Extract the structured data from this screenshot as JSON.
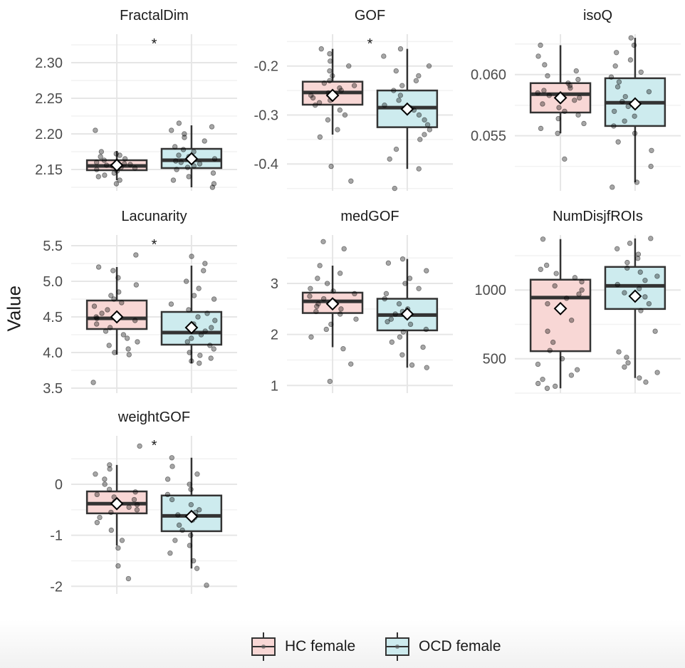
{
  "chart_data": [
    {
      "type": "box",
      "title": "FractalDim",
      "ylim": [
        2.12,
        2.34
      ],
      "yticks": [
        2.15,
        2.2,
        2.25,
        2.3
      ],
      "ytick_labels": [
        "2.15",
        "2.20",
        "2.25",
        "2.30"
      ],
      "significance": "*",
      "groups": [
        {
          "name": "HC female",
          "q1": 2.149,
          "median": 2.155,
          "q3": 2.163,
          "whisker_low": 2.135,
          "whisker_high": 2.176,
          "mean": 2.156,
          "points": [
            2.13,
            2.135,
            2.14,
            2.142,
            2.145,
            2.148,
            2.15,
            2.152,
            2.153,
            2.155,
            2.156,
            2.157,
            2.158,
            2.16,
            2.161,
            2.163,
            2.165,
            2.168,
            2.17,
            2.172,
            2.175,
            2.205
          ]
        },
        {
          "name": "OCD female",
          "q1": 2.152,
          "median": 2.163,
          "q3": 2.179,
          "whisker_low": 2.125,
          "whisker_high": 2.212,
          "mean": 2.165,
          "points": [
            2.125,
            2.13,
            2.135,
            2.14,
            2.145,
            2.15,
            2.153,
            2.155,
            2.158,
            2.16,
            2.162,
            2.165,
            2.168,
            2.17,
            2.175,
            2.178,
            2.182,
            2.19,
            2.195,
            2.2,
            2.205,
            2.21,
            2.215
          ]
        }
      ]
    },
    {
      "type": "box",
      "title": "GOF",
      "ylim": [
        -0.455,
        -0.135
      ],
      "yticks": [
        -0.4,
        -0.3,
        -0.2
      ],
      "ytick_labels": [
        "-0.4",
        "-0.3",
        "-0.2"
      ],
      "significance": "*",
      "groups": [
        {
          "name": "HC female",
          "q1": -0.279,
          "median": -0.254,
          "q3": -0.232,
          "whisker_low": -0.34,
          "whisker_high": -0.165,
          "mean": -0.26,
          "points": [
            -0.435,
            -0.405,
            -0.345,
            -0.33,
            -0.31,
            -0.3,
            -0.29,
            -0.28,
            -0.275,
            -0.27,
            -0.265,
            -0.26,
            -0.255,
            -0.25,
            -0.245,
            -0.24,
            -0.235,
            -0.23,
            -0.22,
            -0.21,
            -0.2,
            -0.19,
            -0.175,
            -0.165
          ]
        },
        {
          "name": "OCD female",
          "q1": -0.325,
          "median": -0.285,
          "q3": -0.25,
          "whisker_low": -0.41,
          "whisker_high": -0.165,
          "mean": -0.288,
          "points": [
            -0.45,
            -0.41,
            -0.39,
            -0.37,
            -0.35,
            -0.34,
            -0.33,
            -0.32,
            -0.31,
            -0.3,
            -0.29,
            -0.285,
            -0.28,
            -0.27,
            -0.26,
            -0.25,
            -0.24,
            -0.23,
            -0.22,
            -0.21,
            -0.2,
            -0.18,
            -0.165
          ]
        }
      ]
    },
    {
      "type": "box",
      "title": "isoQ",
      "ylim": [
        0.0505,
        0.0633
      ],
      "yticks": [
        0.055,
        0.06
      ],
      "ytick_labels": [
        "0.055",
        "0.060"
      ],
      "significance": "",
      "groups": [
        {
          "name": "HC female",
          "q1": 0.0569,
          "median": 0.0584,
          "q3": 0.0593,
          "whisker_low": 0.0552,
          "whisker_high": 0.0624,
          "mean": 0.0581,
          "points": [
            0.0531,
            0.0552,
            0.0556,
            0.056,
            0.0564,
            0.0567,
            0.057,
            0.0573,
            0.0576,
            0.0579,
            0.0581,
            0.0583,
            0.0585,
            0.0587,
            0.0589,
            0.0591,
            0.0593,
            0.0596,
            0.0599,
            0.0603,
            0.0608,
            0.0615,
            0.0624
          ]
        },
        {
          "name": "OCD female",
          "q1": 0.0558,
          "median": 0.0577,
          "q3": 0.0597,
          "whisker_low": 0.0512,
          "whisker_high": 0.063,
          "mean": 0.0576,
          "points": [
            0.0508,
            0.0512,
            0.0525,
            0.0538,
            0.0545,
            0.0552,
            0.0558,
            0.0562,
            0.0566,
            0.057,
            0.0574,
            0.0578,
            0.0582,
            0.0586,
            0.059,
            0.0594,
            0.0598,
            0.0602,
            0.0607,
            0.0612,
            0.0618,
            0.0624,
            0.063
          ]
        }
      ]
    },
    {
      "type": "box",
      "title": "Lacunarity",
      "ylim": [
        3.43,
        5.65
      ],
      "yticks": [
        3.5,
        4.0,
        4.5,
        5.0,
        5.5
      ],
      "ytick_labels": [
        "3.5",
        "4.0",
        "4.5",
        "5.0",
        "5.5"
      ],
      "significance": "*",
      "groups": [
        {
          "name": "HC female",
          "q1": 4.33,
          "median": 4.48,
          "q3": 4.73,
          "whisker_low": 3.97,
          "whisker_high": 5.2,
          "mean": 4.5,
          "points": [
            3.58,
            3.97,
            4.0,
            4.05,
            4.1,
            4.15,
            4.2,
            4.25,
            4.3,
            4.35,
            4.4,
            4.45,
            4.48,
            4.5,
            4.55,
            4.6,
            4.65,
            4.7,
            4.75,
            4.8,
            4.85,
            4.95,
            5.05,
            5.15,
            5.2,
            5.37
          ]
        },
        {
          "name": "OCD female",
          "q1": 4.11,
          "median": 4.28,
          "q3": 4.57,
          "whisker_low": 3.85,
          "whisker_high": 5.22,
          "mean": 4.35,
          "points": [
            3.85,
            3.88,
            3.92,
            3.96,
            4.0,
            4.05,
            4.1,
            4.15,
            4.2,
            4.25,
            4.3,
            4.35,
            4.4,
            4.45,
            4.5,
            4.55,
            4.6,
            4.68,
            4.75,
            4.8,
            4.9,
            5.0,
            5.15,
            5.25,
            5.35
          ]
        }
      ]
    },
    {
      "type": "box",
      "title": "medGOF",
      "ylim": [
        0.85,
        3.95
      ],
      "yticks": [
        1,
        2,
        3
      ],
      "ytick_labels": [
        "1",
        "2",
        "3"
      ],
      "significance": "",
      "groups": [
        {
          "name": "HC female",
          "q1": 2.42,
          "median": 2.65,
          "q3": 2.82,
          "whisker_low": 1.75,
          "whisker_high": 3.35,
          "mean": 2.6,
          "points": [
            1.08,
            1.42,
            1.72,
            1.95,
            2.1,
            2.2,
            2.3,
            2.4,
            2.45,
            2.5,
            2.55,
            2.6,
            2.65,
            2.7,
            2.75,
            2.8,
            2.85,
            2.9,
            3.0,
            3.1,
            3.2,
            3.35,
            3.68,
            3.82
          ]
        },
        {
          "name": "OCD female",
          "q1": 2.08,
          "median": 2.38,
          "q3": 2.7,
          "whisker_low": 1.35,
          "whisker_high": 3.48,
          "mean": 2.4,
          "points": [
            1.35,
            1.4,
            1.6,
            1.75,
            1.85,
            1.95,
            2.05,
            2.1,
            2.2,
            2.25,
            2.3,
            2.35,
            2.4,
            2.45,
            2.5,
            2.6,
            2.7,
            2.8,
            2.9,
            3.0,
            3.1,
            3.25,
            3.4,
            3.48
          ]
        }
      ]
    },
    {
      "type": "box",
      "title": "NumDisjfROIs",
      "ylim": [
        250,
        1400
      ],
      "yticks": [
        500,
        1000
      ],
      "ytick_labels": [
        "500",
        "1000"
      ],
      "significance": "",
      "groups": [
        {
          "name": "HC female",
          "q1": 555,
          "median": 945,
          "q3": 1075,
          "whisker_low": 285,
          "whisker_high": 1370,
          "mean": 865,
          "points": [
            285,
            300,
            320,
            350,
            380,
            420,
            460,
            500,
            560,
            620,
            700,
            780,
            850,
            900,
            940,
            970,
            1000,
            1030,
            1060,
            1090,
            1120,
            1150,
            1180,
            1370
          ]
        },
        {
          "name": "OCD female",
          "q1": 862,
          "median": 1030,
          "q3": 1168,
          "whisker_low": 360,
          "whisker_high": 1375,
          "mean": 955,
          "points": [
            330,
            360,
            400,
            440,
            470,
            510,
            550,
            700,
            850,
            900,
            950,
            980,
            1010,
            1040,
            1070,
            1100,
            1130,
            1160,
            1200,
            1230,
            1260,
            1300,
            1340,
            1375
          ]
        }
      ]
    },
    {
      "type": "box",
      "title": "weightGOF",
      "ylim": [
        -2.15,
        0.95
      ],
      "yticks": [
        -2,
        -1,
        0
      ],
      "ytick_labels": [
        "-2",
        "-1",
        "0"
      ],
      "significance": "*",
      "groups": [
        {
          "name": "HC female",
          "q1": -0.57,
          "median": -0.38,
          "q3": -0.14,
          "whisker_low": -1.2,
          "whisker_high": 0.38,
          "mean": -0.38,
          "points": [
            -1.85,
            -1.6,
            -1.25,
            -1.1,
            -0.9,
            -0.75,
            -0.65,
            -0.55,
            -0.5,
            -0.45,
            -0.4,
            -0.35,
            -0.3,
            -0.25,
            -0.2,
            -0.15,
            -0.1,
            0.0,
            0.1,
            0.2,
            0.3,
            0.38,
            0.75
          ]
        },
        {
          "name": "OCD female",
          "q1": -0.92,
          "median": -0.62,
          "q3": -0.22,
          "whisker_low": -1.65,
          "whisker_high": 0.52,
          "mean": -0.63,
          "points": [
            -1.98,
            -1.65,
            -1.5,
            -1.35,
            -1.2,
            -1.1,
            -1.0,
            -0.9,
            -0.8,
            -0.7,
            -0.65,
            -0.6,
            -0.55,
            -0.5,
            -0.4,
            -0.3,
            -0.2,
            -0.1,
            0.0,
            0.1,
            0.2,
            0.35,
            0.52
          ]
        }
      ]
    }
  ],
  "ylabel": "Value",
  "legend": {
    "items": [
      {
        "label": "HC female",
        "fill": "#f8d7d5"
      },
      {
        "label": "OCD female",
        "fill": "#cdebee"
      }
    ]
  },
  "colors": {
    "hc_fill": "#f8d7d5",
    "ocd_fill": "#cdebee",
    "box_stroke": "#333333",
    "grid_major": "#e6e6e6",
    "grid_minor": "#f2f2f2",
    "point": "#000000",
    "mean_marker": "#ffffff"
  }
}
